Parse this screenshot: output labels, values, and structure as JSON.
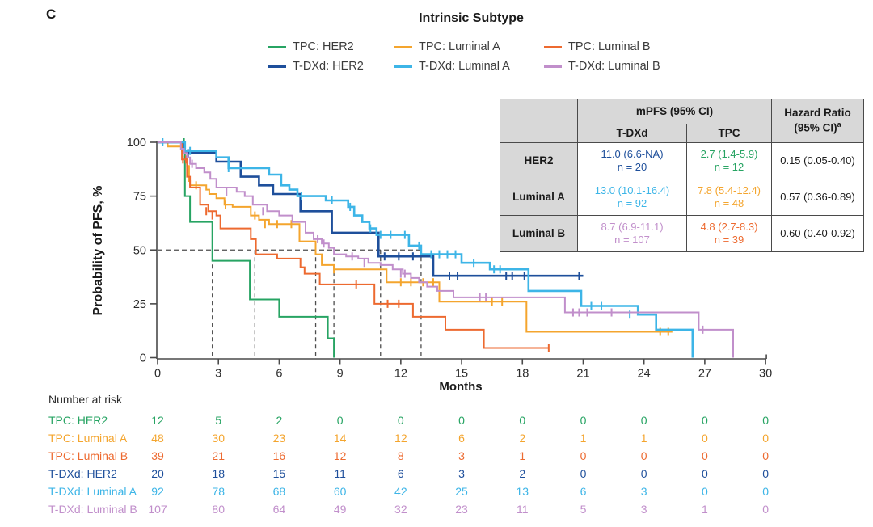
{
  "panel_label": "C",
  "title": "Intrinsic Subtype",
  "axis": {
    "ylabel": "Probability of PFS, %",
    "xlabel": "Months"
  },
  "legend": {
    "items": [
      {
        "label": "TPC: HER2",
        "color": "#27A463",
        "row": 0,
        "col": 0
      },
      {
        "label": "TPC: Luminal A",
        "color": "#F4A52E",
        "row": 0,
        "col": 1
      },
      {
        "label": "TPC: Luminal B",
        "color": "#ED6A30",
        "row": 0,
        "col": 2
      },
      {
        "label": "T-DXd: HER2",
        "color": "#1E4F9B",
        "row": 1,
        "col": 0
      },
      {
        "label": "T-DXd: Luminal A",
        "color": "#3DB5E7",
        "row": 1,
        "col": 1
      },
      {
        "label": "T-DXd: Luminal B",
        "color": "#C18FCB",
        "row": 1,
        "col": 2
      }
    ]
  },
  "stats_table": {
    "col_headers": {
      "group": "mPFS (95% CI)",
      "tdxd": "T-DXd",
      "tpc": "TPC",
      "hr_line1": "Hazard Ratio",
      "hr_line2": "(95% CI)",
      "hr_sup": "a"
    },
    "rows": [
      {
        "label": "HER2",
        "tdxd": {
          "value": "11.0 (6.6-NA)",
          "n": "n = 20",
          "color": "#1E4F9B"
        },
        "tpc": {
          "value": "2.7 (1.4-5.9)",
          "n": "n = 12",
          "color": "#27A463"
        },
        "hr": "0.15 (0.05-0.40)"
      },
      {
        "label": "Luminal A",
        "tdxd": {
          "value": "13.0 (10.1-16.4)",
          "n": "n = 92",
          "color": "#3DB5E7"
        },
        "tpc": {
          "value": "7.8 (5.4-12.4)",
          "n": "n = 48",
          "color": "#F4A52E"
        },
        "hr": "0.57 (0.36-0.89)"
      },
      {
        "label": "Luminal B",
        "tdxd": {
          "value": "8.7 (6.9-11.1)",
          "n": "n = 107",
          "color": "#C18FCB"
        },
        "tpc": {
          "value": "4.8 (2.7-8.3)",
          "n": "n = 39",
          "color": "#ED6A30"
        },
        "hr": "0.60 (0.40-0.92)"
      }
    ]
  },
  "chart_data": {
    "type": "line",
    "subtype": "kaplan-meier-step",
    "title": "Intrinsic Subtype",
    "xlabel": "Months",
    "ylabel": "Probability of PFS, %",
    "xlim": [
      0,
      30
    ],
    "ylim": [
      0,
      100
    ],
    "xticks": [
      0,
      3,
      6,
      9,
      12,
      15,
      18,
      21,
      24,
      27,
      30
    ],
    "yticks": [
      0,
      25,
      50,
      75,
      100
    ],
    "grid": false,
    "legend_position": "top-center",
    "median_reference": {
      "y_pct": 50,
      "months": [
        2.7,
        4.8,
        7.8,
        8.7,
        11.0,
        13.0
      ]
    },
    "series": [
      {
        "name": "TPC: HER2",
        "color": "#27A463",
        "n": 12,
        "median_mpfs": "2.7 (1.4-5.9)",
        "width": 2,
        "steps": [
          [
            0,
            100
          ],
          [
            1.35,
            75
          ],
          [
            1.6,
            63
          ],
          [
            2.7,
            45
          ],
          [
            4.55,
            27
          ],
          [
            6.0,
            19
          ],
          [
            8.4,
            9
          ],
          [
            8.7,
            0
          ]
        ],
        "censors": [
          [
            1.3,
            100
          ]
        ]
      },
      {
        "name": "TPC: Luminal A",
        "color": "#F4A52E",
        "n": 48,
        "median_mpfs": "7.8 (5.4-12.4)",
        "width": 2,
        "steps": [
          [
            0,
            100
          ],
          [
            0.5,
            98
          ],
          [
            1.2,
            96
          ],
          [
            1.45,
            89
          ],
          [
            1.55,
            82
          ],
          [
            1.6,
            80
          ],
          [
            2.4,
            78
          ],
          [
            2.55,
            76
          ],
          [
            2.9,
            74
          ],
          [
            3.3,
            71
          ],
          [
            3.7,
            70
          ],
          [
            4.6,
            66
          ],
          [
            5.0,
            64
          ],
          [
            5.5,
            62
          ],
          [
            7.0,
            54
          ],
          [
            7.8,
            48
          ],
          [
            8.1,
            43
          ],
          [
            8.7,
            41
          ],
          [
            11.3,
            35
          ],
          [
            13.9,
            26
          ],
          [
            18.2,
            12
          ],
          [
            25.4,
            12
          ]
        ],
        "censors": [
          [
            1.25,
            96
          ],
          [
            1.9,
            80
          ],
          [
            3.35,
            71
          ],
          [
            4.8,
            66
          ],
          [
            5.3,
            62
          ],
          [
            5.9,
            62
          ],
          [
            6.6,
            62
          ],
          [
            8.7,
            41
          ],
          [
            12.0,
            35
          ],
          [
            12.5,
            35
          ],
          [
            13.1,
            35
          ],
          [
            13.6,
            35
          ],
          [
            16.5,
            26
          ],
          [
            17.0,
            26
          ],
          [
            24.8,
            12
          ],
          [
            25.2,
            12
          ]
        ]
      },
      {
        "name": "TPC: Luminal B",
        "color": "#ED6A30",
        "n": 39,
        "median_mpfs": "4.8 (2.7-8.3)",
        "width": 2,
        "steps": [
          [
            0,
            100
          ],
          [
            1.2,
            92
          ],
          [
            1.45,
            84
          ],
          [
            1.6,
            79
          ],
          [
            2.1,
            71
          ],
          [
            2.5,
            68
          ],
          [
            2.9,
            66
          ],
          [
            3.1,
            60
          ],
          [
            4.6,
            55
          ],
          [
            4.85,
            48
          ],
          [
            5.9,
            46
          ],
          [
            7.05,
            42
          ],
          [
            7.25,
            39
          ],
          [
            8.0,
            34
          ],
          [
            10.7,
            25
          ],
          [
            12.6,
            19
          ],
          [
            14.2,
            13
          ],
          [
            16.1,
            4.5
          ],
          [
            19.3,
            4.5
          ]
        ],
        "censors": [
          [
            1.25,
            92
          ],
          [
            1.4,
            92
          ],
          [
            2.4,
            68
          ],
          [
            2.7,
            66
          ],
          [
            9.8,
            34
          ],
          [
            11.35,
            25
          ],
          [
            11.9,
            25
          ],
          [
            19.3,
            4.5
          ]
        ]
      },
      {
        "name": "T-DXd: HER2",
        "color": "#1E4F9B",
        "n": 20,
        "median_mpfs": "11.0 (6.6-NA)",
        "width": 2.6,
        "steps": [
          [
            0,
            100
          ],
          [
            1.3,
            95
          ],
          [
            2.9,
            91
          ],
          [
            4.1,
            84
          ],
          [
            5.0,
            80
          ],
          [
            5.7,
            76
          ],
          [
            7.05,
            68
          ],
          [
            8.6,
            58
          ],
          [
            10.9,
            47
          ],
          [
            13.6,
            38
          ],
          [
            21.0,
            38
          ]
        ],
        "censors": [
          [
            1.5,
            95
          ],
          [
            11.2,
            47
          ],
          [
            11.9,
            47
          ],
          [
            12.6,
            47
          ],
          [
            14.4,
            38
          ],
          [
            14.8,
            38
          ],
          [
            17.2,
            38
          ],
          [
            17.5,
            38
          ],
          [
            18.1,
            38
          ],
          [
            20.8,
            38
          ]
        ]
      },
      {
        "name": "T-DXd: Luminal A",
        "color": "#3DB5E7",
        "n": 92,
        "median_mpfs": "13.0 (10.1-16.4)",
        "width": 2.6,
        "steps": [
          [
            0,
            100
          ],
          [
            1.35,
            96
          ],
          [
            2.9,
            93
          ],
          [
            3.5,
            88
          ],
          [
            5.5,
            85
          ],
          [
            6.1,
            80
          ],
          [
            6.5,
            78
          ],
          [
            6.9,
            75
          ],
          [
            8.3,
            73
          ],
          [
            9.4,
            70
          ],
          [
            9.7,
            66
          ],
          [
            10.1,
            63
          ],
          [
            10.45,
            60
          ],
          [
            10.8,
            57
          ],
          [
            12.4,
            52
          ],
          [
            13.0,
            48
          ],
          [
            15.0,
            44
          ],
          [
            16.4,
            41
          ],
          [
            18.3,
            31
          ],
          [
            20.9,
            24
          ],
          [
            23.7,
            20
          ],
          [
            24.6,
            13
          ],
          [
            26.4,
            0
          ]
        ],
        "censors": [
          [
            0.25,
            100
          ],
          [
            1.6,
            96
          ],
          [
            3.5,
            88
          ],
          [
            7.1,
            75
          ],
          [
            8.6,
            73
          ],
          [
            9.5,
            70
          ],
          [
            10.5,
            60
          ],
          [
            11.0,
            57
          ],
          [
            11.5,
            57
          ],
          [
            12.2,
            57
          ],
          [
            12.9,
            52
          ],
          [
            13.5,
            48
          ],
          [
            13.9,
            48
          ],
          [
            14.3,
            48
          ],
          [
            14.7,
            48
          ],
          [
            15.6,
            44
          ],
          [
            16.6,
            41
          ],
          [
            16.9,
            41
          ],
          [
            21.4,
            24
          ],
          [
            21.9,
            24
          ],
          [
            23.3,
            20
          ]
        ]
      },
      {
        "name": "T-DXd: Luminal B",
        "color": "#C18FCB",
        "n": 107,
        "median_mpfs": "8.7 (6.9-11.1)",
        "width": 2,
        "steps": [
          [
            0,
            100
          ],
          [
            1.15,
            97
          ],
          [
            1.3,
            95
          ],
          [
            1.45,
            93
          ],
          [
            1.6,
            90
          ],
          [
            1.9,
            88
          ],
          [
            2.3,
            86
          ],
          [
            2.6,
            83
          ],
          [
            2.9,
            79
          ],
          [
            3.9,
            77
          ],
          [
            4.3,
            75
          ],
          [
            4.7,
            71
          ],
          [
            5.4,
            68
          ],
          [
            6.0,
            66
          ],
          [
            6.65,
            63
          ],
          [
            7.3,
            58
          ],
          [
            7.7,
            55
          ],
          [
            8.1,
            53
          ],
          [
            8.45,
            51
          ],
          [
            8.7,
            48
          ],
          [
            9.3,
            47
          ],
          [
            9.9,
            46
          ],
          [
            10.4,
            44
          ],
          [
            11.0,
            43
          ],
          [
            11.6,
            41
          ],
          [
            12.1,
            39
          ],
          [
            12.5,
            37
          ],
          [
            12.9,
            35
          ],
          [
            13.3,
            33
          ],
          [
            13.8,
            31
          ],
          [
            14.6,
            28
          ],
          [
            20.1,
            21
          ],
          [
            26.7,
            13
          ],
          [
            28.4,
            0
          ]
        ],
        "censors": [
          [
            1.7,
            90
          ],
          [
            3.4,
            77
          ],
          [
            5.2,
            68
          ],
          [
            7.9,
            55
          ],
          [
            8.2,
            53
          ],
          [
            9.6,
            47
          ],
          [
            10.2,
            44
          ],
          [
            12.0,
            39
          ],
          [
            12.2,
            39
          ],
          [
            15.9,
            28
          ],
          [
            16.2,
            28
          ],
          [
            20.5,
            21
          ],
          [
            20.8,
            21
          ],
          [
            21.2,
            21
          ],
          [
            22.4,
            21
          ],
          [
            26.9,
            13
          ]
        ]
      }
    ]
  },
  "risk_table": {
    "title": "Number at risk",
    "months": [
      0,
      3,
      6,
      9,
      12,
      15,
      18,
      21,
      24,
      27,
      30
    ],
    "rows": [
      {
        "label": "TPC: HER2",
        "color": "#27A463",
        "values": [
          12,
          5,
          2,
          0,
          0,
          0,
          0,
          0,
          0,
          0,
          0
        ]
      },
      {
        "label": "TPC: Luminal A",
        "color": "#F4A52E",
        "values": [
          48,
          30,
          23,
          14,
          12,
          6,
          2,
          1,
          1,
          0,
          0
        ]
      },
      {
        "label": "TPC: Luminal B",
        "color": "#ED6A30",
        "values": [
          39,
          21,
          16,
          12,
          8,
          3,
          1,
          0,
          0,
          0,
          0
        ]
      },
      {
        "label": "T-DXd: HER2",
        "color": "#1E4F9B",
        "values": [
          20,
          18,
          15,
          11,
          6,
          3,
          2,
          0,
          0,
          0,
          0
        ]
      },
      {
        "label": "T-DXd: Luminal A",
        "color": "#3DB5E7",
        "values": [
          92,
          78,
          68,
          60,
          42,
          25,
          13,
          6,
          3,
          0,
          0
        ]
      },
      {
        "label": "T-DXd: Luminal B",
        "color": "#C18FCB",
        "values": [
          107,
          80,
          64,
          49,
          32,
          23,
          11,
          5,
          3,
          1,
          0
        ]
      }
    ]
  }
}
